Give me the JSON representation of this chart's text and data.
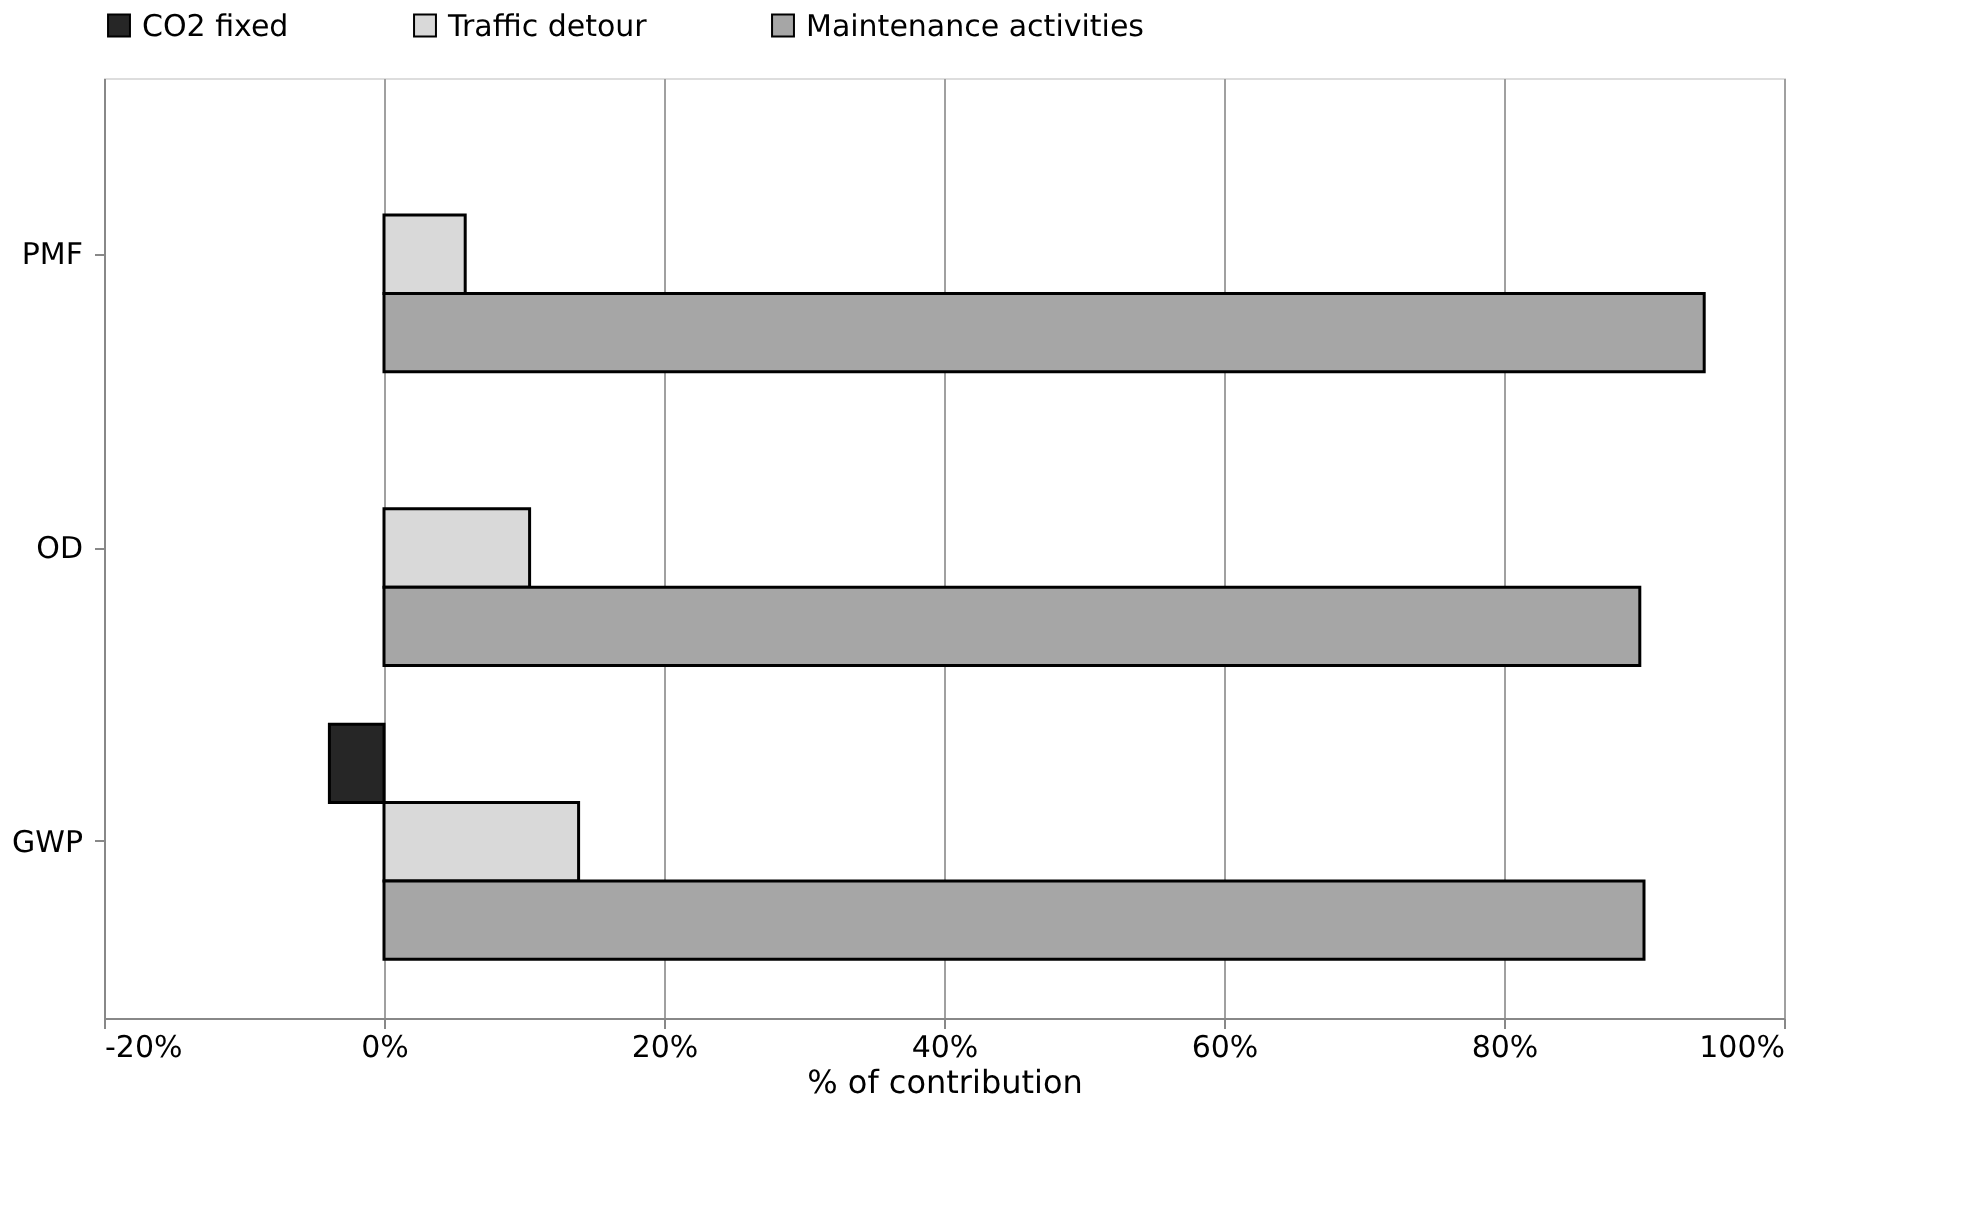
{
  "chart_data": {
    "type": "bar",
    "orientation": "horizontal",
    "xlabel": "% of contribution",
    "categories": [
      "PMF",
      "OD",
      "GWP"
    ],
    "series": [
      {
        "name": "CO2 fixed",
        "color": "#262626",
        "values": [
          null,
          null,
          -3.9
        ]
      },
      {
        "name": "Traffic detour",
        "color": "#d9d9d9",
        "values": [
          5.8,
          10.4,
          13.9
        ]
      },
      {
        "name": "Maintenance activities",
        "color": "#a6a6a6",
        "values": [
          94.3,
          89.7,
          90.0
        ]
      }
    ],
    "xlim": [
      -20,
      100
    ],
    "xticks": [
      {
        "value": -20,
        "label": "-20%"
      },
      {
        "value": 0,
        "label": "0%"
      },
      {
        "value": 20,
        "label": "20%"
      },
      {
        "value": 40,
        "label": "40%"
      },
      {
        "value": 60,
        "label": "60%"
      },
      {
        "value": 80,
        "label": "80%"
      },
      {
        "value": 100,
        "label": "100%"
      }
    ],
    "grid": "x",
    "legend": "top"
  }
}
